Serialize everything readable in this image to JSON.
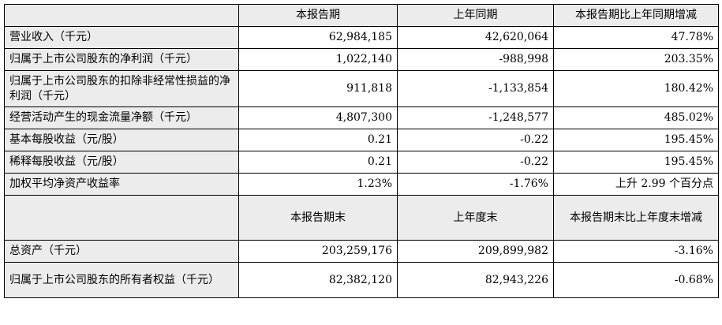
{
  "header1": {
    "blank": "",
    "col1": "本报告期",
    "col2": "上年同期",
    "col3": "本报告期比上年同期增减"
  },
  "section1_rows": [
    {
      "label": "营业收入（千元）",
      "current": "62,984,185",
      "previous": "42,620,064",
      "change": "47.78%"
    },
    {
      "label": "归属于上市公司股东的净利润（千元）",
      "current": "1,022,140",
      "previous": "-988,998",
      "change": "203.35%"
    },
    {
      "label": "归属于上市公司股东的扣除非经常性损益的净利润（千元）",
      "current": "911,818",
      "previous": "-1,133,854",
      "change": "180.42%"
    },
    {
      "label": "经营活动产生的现金流量净额（千元）",
      "current": "4,807,300",
      "previous": "-1,248,577",
      "change": "485.02%"
    },
    {
      "label": "基本每股收益（元/股）",
      "current": "0.21",
      "previous": "-0.22",
      "change": "195.45%"
    },
    {
      "label": "稀释每股收益（元/股）",
      "current": "0.21",
      "previous": "-0.22",
      "change": "195.45%"
    },
    {
      "label": "加权平均净资产收益率",
      "current": "1.23%",
      "previous": "-1.76%",
      "change": "上升 2.99 个百分点"
    }
  ],
  "header2": {
    "blank": "",
    "col1": "本报告期末",
    "col2": "上年度末",
    "col3": "本报告期末比上年度末增减"
  },
  "section2_rows": [
    {
      "label": "总资产（千元）",
      "current": "203,259,176",
      "previous": "209,899,982",
      "change": "-3.16%"
    },
    {
      "label": "归属于上市公司股东的所有者权益（千元）",
      "current": "82,382,120",
      "previous": "82,943,226",
      "change": "-0.68%"
    }
  ]
}
